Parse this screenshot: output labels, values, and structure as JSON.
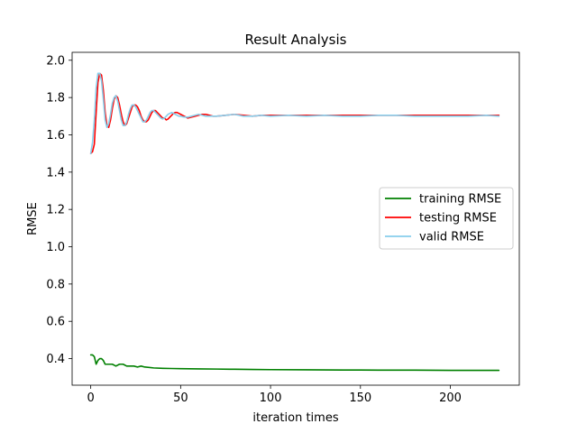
{
  "chart_data": {
    "type": "line",
    "title": "Result Analysis",
    "xlabel": "iteration times",
    "ylabel": "RMSE",
    "xlim": [
      -10.35,
      238.35
    ],
    "ylim": [
      0.2575,
      2.0425
    ],
    "xticks": [
      0,
      50,
      100,
      150,
      200
    ],
    "xtick_labels": [
      "0",
      "50",
      "100",
      "150",
      "200"
    ],
    "yticks": [
      0.4,
      0.6,
      0.8,
      1.0,
      1.2,
      1.4,
      1.6,
      1.8,
      2.0
    ],
    "ytick_labels": [
      "0.4",
      "0.6",
      "0.8",
      "1.0",
      "1.2",
      "1.4",
      "1.6",
      "1.8",
      "2.0"
    ],
    "grid": false,
    "legend_position": "center-right",
    "series": [
      {
        "name": "training RMSE",
        "color": "#008000",
        "x": [
          0,
          1,
          2,
          3,
          4,
          5,
          6,
          7,
          8,
          9,
          10,
          12,
          14,
          16,
          18,
          20,
          22,
          24,
          26,
          28,
          30,
          35,
          40,
          45,
          50,
          60,
          70,
          80,
          90,
          100,
          120,
          140,
          150,
          160,
          180,
          200,
          210,
          220,
          227
        ],
        "values": [
          0.42,
          0.42,
          0.41,
          0.37,
          0.39,
          0.4,
          0.4,
          0.39,
          0.37,
          0.37,
          0.37,
          0.37,
          0.36,
          0.37,
          0.37,
          0.36,
          0.36,
          0.36,
          0.355,
          0.36,
          0.355,
          0.35,
          0.348,
          0.347,
          0.346,
          0.345,
          0.344,
          0.343,
          0.342,
          0.341,
          0.34,
          0.339,
          0.339,
          0.338,
          0.338,
          0.337,
          0.337,
          0.337,
          0.337
        ]
      },
      {
        "name": "testing RMSE",
        "color": "#ff0000",
        "x": [
          0,
          1,
          2,
          3,
          4,
          5,
          6,
          7,
          8,
          9,
          10,
          11,
          12,
          13,
          14,
          15,
          16,
          17,
          18,
          19,
          20,
          21,
          22,
          23,
          24,
          25,
          26,
          27,
          28,
          29,
          30,
          31,
          32,
          33,
          34,
          35,
          36,
          37,
          38,
          39,
          40,
          41,
          42,
          43,
          44,
          45,
          46,
          47,
          48,
          49,
          50,
          52,
          54,
          56,
          58,
          60,
          62,
          64,
          66,
          68,
          70,
          75,
          80,
          85,
          90,
          95,
          100,
          110,
          120,
          130,
          140,
          150,
          160,
          170,
          180,
          190,
          200,
          210,
          220,
          227
        ],
        "values": [
          1.5,
          1.51,
          1.55,
          1.72,
          1.88,
          1.93,
          1.92,
          1.84,
          1.72,
          1.65,
          1.64,
          1.68,
          1.74,
          1.79,
          1.81,
          1.8,
          1.76,
          1.71,
          1.67,
          1.65,
          1.66,
          1.69,
          1.72,
          1.75,
          1.76,
          1.76,
          1.75,
          1.73,
          1.7,
          1.68,
          1.67,
          1.67,
          1.68,
          1.7,
          1.72,
          1.73,
          1.73,
          1.72,
          1.71,
          1.7,
          1.69,
          1.69,
          1.68,
          1.685,
          1.695,
          1.705,
          1.715,
          1.72,
          1.72,
          1.715,
          1.71,
          1.7,
          1.69,
          1.695,
          1.7,
          1.705,
          1.71,
          1.71,
          1.705,
          1.7,
          1.7,
          1.705,
          1.71,
          1.705,
          1.7,
          1.705,
          1.705,
          1.705,
          1.705,
          1.705,
          1.705,
          1.705,
          1.705,
          1.705,
          1.705,
          1.705,
          1.705,
          1.705,
          1.705,
          1.705
        ]
      },
      {
        "name": "valid RMSE",
        "color": "#87ceeb",
        "x": [
          0,
          1,
          2,
          3,
          4,
          5,
          6,
          7,
          8,
          9,
          10,
          11,
          12,
          13,
          14,
          15,
          16,
          17,
          18,
          19,
          20,
          21,
          22,
          23,
          24,
          25,
          26,
          27,
          28,
          29,
          30,
          31,
          32,
          33,
          34,
          35,
          36,
          37,
          38,
          39,
          40,
          41,
          42,
          43,
          44,
          45,
          46,
          47,
          48,
          49,
          50,
          52,
          54,
          56,
          58,
          60,
          62,
          64,
          66,
          68,
          70,
          75,
          80,
          85,
          90,
          95,
          100,
          110,
          120,
          130,
          140,
          150,
          160,
          170,
          180,
          190,
          200,
          210,
          220,
          227
        ],
        "values": [
          1.5,
          1.56,
          1.68,
          1.85,
          1.93,
          1.93,
          1.89,
          1.79,
          1.68,
          1.64,
          1.66,
          1.71,
          1.77,
          1.8,
          1.81,
          1.78,
          1.73,
          1.68,
          1.65,
          1.65,
          1.67,
          1.71,
          1.74,
          1.76,
          1.76,
          1.75,
          1.73,
          1.71,
          1.69,
          1.67,
          1.67,
          1.68,
          1.7,
          1.72,
          1.73,
          1.73,
          1.72,
          1.71,
          1.7,
          1.69,
          1.685,
          1.69,
          1.7,
          1.71,
          1.715,
          1.72,
          1.715,
          1.71,
          1.705,
          1.7,
          1.7,
          1.695,
          1.695,
          1.7,
          1.705,
          1.71,
          1.705,
          1.7,
          1.7,
          1.7,
          1.7,
          1.705,
          1.71,
          1.7,
          1.7,
          1.705,
          1.7,
          1.705,
          1.7,
          1.705,
          1.7,
          1.7,
          1.705,
          1.705,
          1.7,
          1.7,
          1.7,
          1.7,
          1.705,
          1.7
        ]
      }
    ]
  }
}
